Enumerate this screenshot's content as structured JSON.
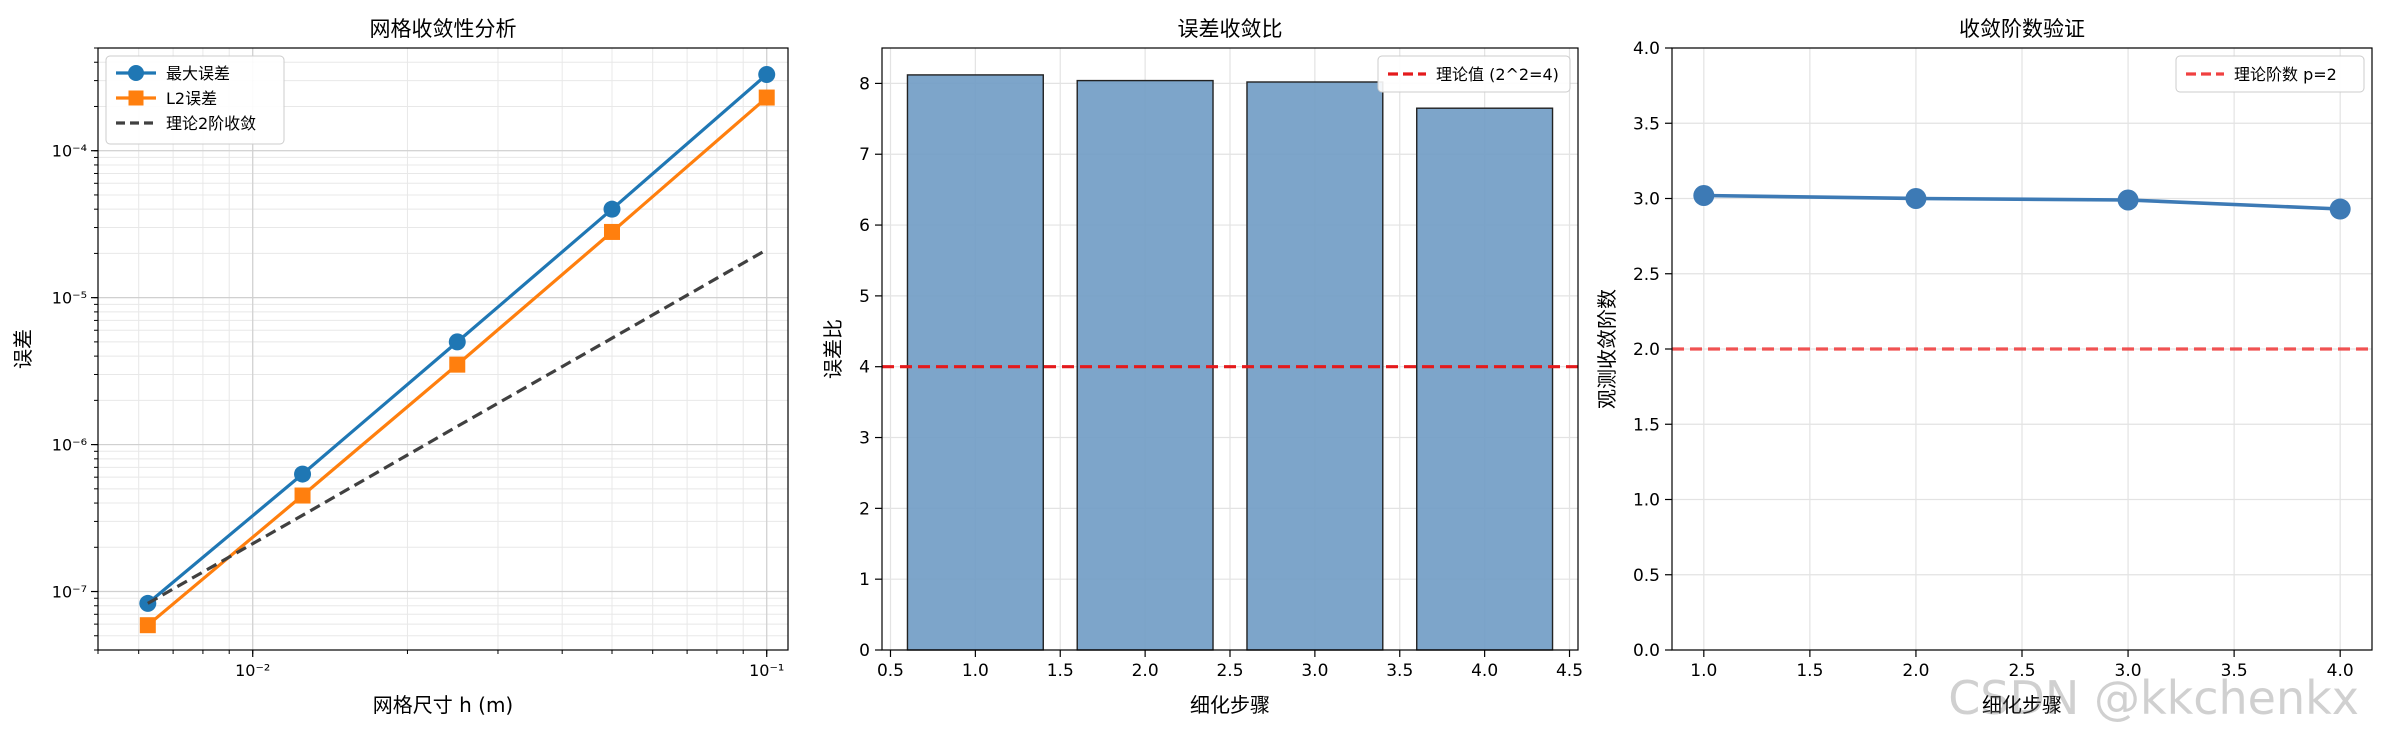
{
  "watermark": "CSDN @kkchenkx",
  "chart_data": [
    {
      "type": "line",
      "title": "网格收敛性分析",
      "xlabel": "网格尺寸 h (m)",
      "ylabel": "误差",
      "xscale": "log",
      "yscale": "log",
      "xlim": [
        0.005,
        0.11
      ],
      "ylim": [
        4e-08,
        0.0005
      ],
      "x_ticks": [
        {
          "value": 0.01,
          "label": "10⁻²"
        },
        {
          "value": 0.1,
          "label": "10⁻¹"
        }
      ],
      "y_ticks": [
        {
          "value": 1e-07,
          "label": "10⁻⁷"
        },
        {
          "value": 1e-06,
          "label": "10⁻⁶"
        },
        {
          "value": 1e-05,
          "label": "10⁻⁵"
        },
        {
          "value": 0.0001,
          "label": "10⁻⁴"
        }
      ],
      "grid": true,
      "legend_position": "upper-left",
      "x": [
        0.00625,
        0.0125,
        0.025,
        0.05,
        0.1
      ],
      "series": [
        {
          "name": "最大误差",
          "values": [
            8.3e-08,
            6.3e-07,
            5e-06,
            4e-05,
            0.00033
          ],
          "color": "#1f77b4",
          "marker": "circle",
          "dash": "solid"
        },
        {
          "name": "L2误差",
          "values": [
            5.9e-08,
            4.5e-07,
            3.5e-06,
            2.8e-05,
            0.00023
          ],
          "color": "#ff7f0e",
          "marker": "square",
          "dash": "solid"
        },
        {
          "name": "理论2阶收敛",
          "values": [
            8.3e-08,
            3.3e-07,
            1.33e-06,
            5.3e-06,
            2.12e-05
          ],
          "color": "#404040",
          "marker": "none",
          "dash": "dashed"
        }
      ]
    },
    {
      "type": "bar",
      "title": "误差收敛比",
      "xlabel": "细化步骤",
      "ylabel": "误差比",
      "xlim": [
        0.45,
        4.55
      ],
      "ylim": [
        0,
        8.5
      ],
      "x_ticks": [
        0.5,
        1.0,
        1.5,
        2.0,
        2.5,
        3.0,
        3.5,
        4.0,
        4.5
      ],
      "y_ticks": [
        0,
        1,
        2,
        3,
        4,
        5,
        6,
        7,
        8
      ],
      "grid": true,
      "legend_position": "upper-right",
      "categories": [
        1,
        2,
        3,
        4
      ],
      "values": [
        8.12,
        8.04,
        8.02,
        7.65
      ],
      "bar_color": "#6f9bc4",
      "reference_line": {
        "name": "理论值 (2^2=4)",
        "value": 4,
        "color": "#e41a1c"
      }
    },
    {
      "type": "line",
      "title": "收敛阶数验证",
      "xlabel": "细化步骤",
      "ylabel": "观测收敛阶数",
      "xlim": [
        0.85,
        4.15
      ],
      "ylim": [
        0,
        4
      ],
      "x_ticks": [
        1.0,
        1.5,
        2.0,
        2.5,
        3.0,
        3.5,
        4.0
      ],
      "y_ticks": [
        0.0,
        0.5,
        1.0,
        1.5,
        2.0,
        2.5,
        3.0,
        3.5,
        4.0
      ],
      "grid": true,
      "legend_position": "upper-right",
      "x": [
        1,
        2,
        3,
        4
      ],
      "series": [
        {
          "name": "",
          "values": [
            3.02,
            3.0,
            2.99,
            2.93
          ],
          "color": "#3d7ab5",
          "marker": "circle",
          "dash": "solid"
        }
      ],
      "reference_line": {
        "name": "理论阶数 p=2",
        "value": 2,
        "color": "#f04040"
      }
    }
  ]
}
